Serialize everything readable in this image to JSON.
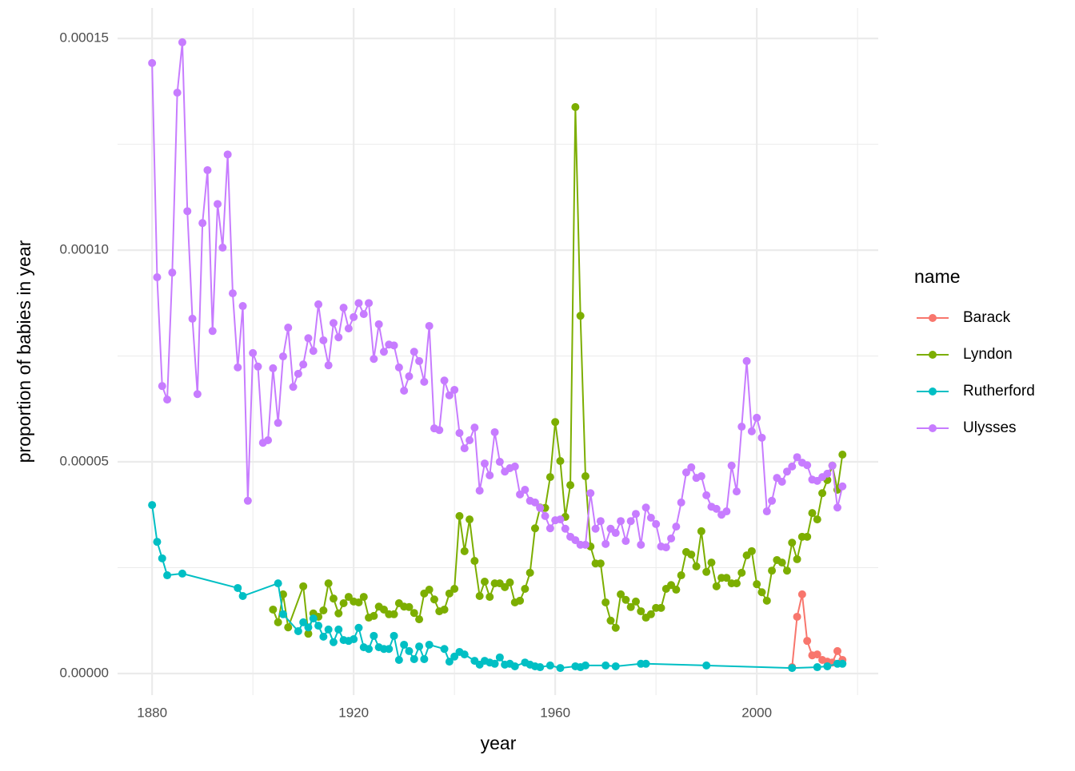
{
  "chart_data": {
    "type": "line",
    "x_label": "year",
    "y_label": "proportion of babies in year",
    "legend_title": "name",
    "legend_position": "right",
    "grid": true,
    "xlim": [
      1873.15,
      2024.1
    ],
    "ylim": [
      -5.1e-06,
      0.0001572
    ],
    "xticks": [
      1880,
      1920,
      1960,
      2000
    ],
    "yticks": [
      {
        "value": 0,
        "label": "0.00000"
      },
      {
        "value": 5e-05,
        "label": "0.00005"
      },
      {
        "value": 0.0001,
        "label": "0.00010"
      },
      {
        "value": 0.00015,
        "label": "0.00015"
      }
    ],
    "series": [
      {
        "name": "Barack",
        "color": "#F8766D",
        "x": [
          2007,
          2008,
          2009,
          2010,
          2011,
          2012,
          2013,
          2014,
          2015,
          2016,
          2017
        ],
        "values": [
          1.5e-06,
          1.34e-05,
          1.87e-05,
          7.7e-06,
          4.3e-06,
          4.5e-06,
          3.2e-06,
          2.8e-06,
          2.6e-06,
          5.3e-06,
          3.2e-06
        ]
      },
      {
        "name": "Lyndon",
        "color": "#7CAE00",
        "x": [
          1904,
          1905,
          1906,
          1907,
          1910,
          1911,
          1912,
          1913,
          1914,
          1915,
          1916,
          1917,
          1918,
          1919,
          1920,
          1921,
          1922,
          1923,
          1924,
          1925,
          1926,
          1927,
          1928,
          1929,
          1930,
          1931,
          1932,
          1933,
          1934,
          1935,
          1936,
          1937,
          1938,
          1939,
          1940,
          1941,
          1942,
          1943,
          1944,
          1945,
          1946,
          1947,
          1948,
          1949,
          1950,
          1951,
          1952,
          1953,
          1954,
          1955,
          1956,
          1957,
          1958,
          1959,
          1960,
          1961,
          1962,
          1963,
          1964,
          1965,
          1966,
          1967,
          1968,
          1969,
          1970,
          1971,
          1972,
          1973,
          1974,
          1975,
          1976,
          1977,
          1978,
          1979,
          1980,
          1981,
          1982,
          1983,
          1984,
          1985,
          1986,
          1987,
          1988,
          1989,
          1990,
          1991,
          1992,
          1993,
          1994,
          1995,
          1996,
          1997,
          1998,
          1999,
          2000,
          2001,
          2002,
          2003,
          2004,
          2005,
          2006,
          2007,
          2008,
          2009,
          2010,
          2011,
          2012,
          2013,
          2014,
          2015,
          2016,
          2017
        ],
        "values": [
          1.51e-05,
          1.21e-05,
          1.87e-05,
          1.09e-05,
          2.06e-05,
          9.4e-06,
          1.42e-05,
          1.34e-05,
          1.49e-05,
          2.13e-05,
          1.77e-05,
          1.42e-05,
          1.66e-05,
          1.81e-05,
          1.7e-05,
          1.68e-05,
          1.81e-05,
          1.32e-05,
          1.36e-05,
          1.58e-05,
          1.51e-05,
          1.4e-05,
          1.4e-05,
          1.66e-05,
          1.58e-05,
          1.57e-05,
          1.43e-05,
          1.28e-05,
          1.89e-05,
          1.98e-05,
          1.75e-05,
          1.47e-05,
          1.51e-05,
          1.89e-05,
          2e-05,
          3.72e-05,
          2.89e-05,
          3.64e-05,
          2.66e-05,
          1.83e-05,
          2.17e-05,
          1.81e-05,
          2.13e-05,
          2.13e-05,
          2.04e-05,
          2.15e-05,
          1.68e-05,
          1.72e-05,
          2e-05,
          2.38e-05,
          3.43e-05,
          3.92e-05,
          3.91e-05,
          4.64e-05,
          5.94e-05,
          5.02e-05,
          3.7e-05,
          4.45e-05,
          0.0001338,
          8.45e-05,
          4.66e-05,
          3e-05,
          2.6e-05,
          2.6e-05,
          1.68e-05,
          1.25e-05,
          1.08e-05,
          1.87e-05,
          1.74e-05,
          1.57e-05,
          1.7e-05,
          1.47e-05,
          1.32e-05,
          1.4e-05,
          1.55e-05,
          1.55e-05,
          2e-05,
          2.09e-05,
          1.98e-05,
          2.32e-05,
          2.87e-05,
          2.81e-05,
          2.53e-05,
          3.36e-05,
          2.4e-05,
          2.62e-05,
          2.06e-05,
          2.26e-05,
          2.26e-05,
          2.13e-05,
          2.13e-05,
          2.38e-05,
          2.79e-05,
          2.89e-05,
          2.11e-05,
          1.92e-05,
          1.72e-05,
          2.43e-05,
          2.68e-05,
          2.62e-05,
          2.43e-05,
          3.09e-05,
          2.7e-05,
          3.23e-05,
          3.23e-05,
          3.79e-05,
          3.64e-05,
          4.26e-05,
          4.57e-05,
          4.91e-05,
          4.34e-05,
          5.17e-05
        ]
      },
      {
        "name": "Rutherford",
        "color": "#00BFC4",
        "x": [
          1880,
          1881,
          1882,
          1883,
          1886,
          1897,
          1898,
          1905,
          1906,
          1909,
          1910,
          1911,
          1912,
          1913,
          1914,
          1915,
          1916,
          1917,
          1918,
          1919,
          1920,
          1921,
          1922,
          1923,
          1924,
          1925,
          1926,
          1927,
          1928,
          1929,
          1930,
          1931,
          1932,
          1933,
          1934,
          1935,
          1938,
          1939,
          1940,
          1941,
          1942,
          1944,
          1945,
          1946,
          1947,
          1948,
          1949,
          1950,
          1951,
          1952,
          1954,
          1955,
          1956,
          1957,
          1959,
          1961,
          1964,
          1965,
          1966,
          1970,
          1972,
          1977,
          1978,
          1990,
          2007,
          2012,
          2014,
          2016,
          2017
        ],
        "values": [
          3.98e-05,
          3.11e-05,
          2.72e-05,
          2.32e-05,
          2.36e-05,
          2.02e-05,
          1.83e-05,
          2.13e-05,
          1.4e-05,
          1e-05,
          1.21e-05,
          1.09e-05,
          1.3e-05,
          1.13e-05,
          8.7e-06,
          1.04e-05,
          7.4e-06,
          1.04e-05,
          7.9e-06,
          7.7e-06,
          8.1e-06,
          1.08e-05,
          6.2e-06,
          5.8e-06,
          8.9e-06,
          6.2e-06,
          5.8e-06,
          5.8e-06,
          8.9e-06,
          3.2e-06,
          6.8e-06,
          5.3e-06,
          3.4e-06,
          6.4e-06,
          3.4e-06,
          6.8e-06,
          5.8e-06,
          2.8e-06,
          4e-06,
          5.1e-06,
          4.5e-06,
          3e-06,
          2.1e-06,
          3e-06,
          2.6e-06,
          2.3e-06,
          3.8e-06,
          2.1e-06,
          2.3e-06,
          1.7e-06,
          2.6e-06,
          2.1e-06,
          1.7e-06,
          1.5e-06,
          1.9e-06,
          1.3e-06,
          1.7e-06,
          1.5e-06,
          1.9e-06,
          1.9e-06,
          1.7e-06,
          2.3e-06,
          2.3e-06,
          1.9e-06,
          1.3e-06,
          1.5e-06,
          1.7e-06,
          2.3e-06,
          2.3e-06
        ]
      },
      {
        "name": "Ulysses",
        "color": "#C77CFF",
        "x": [
          1880,
          1881,
          1882,
          1883,
          1884,
          1885,
          1886,
          1887,
          1888,
          1889,
          1890,
          1891,
          1892,
          1893,
          1894,
          1895,
          1896,
          1897,
          1898,
          1899,
          1900,
          1901,
          1902,
          1903,
          1904,
          1905,
          1906,
          1907,
          1908,
          1909,
          1910,
          1911,
          1912,
          1913,
          1914,
          1915,
          1916,
          1917,
          1918,
          1919,
          1920,
          1921,
          1922,
          1923,
          1924,
          1925,
          1926,
          1927,
          1928,
          1929,
          1930,
          1931,
          1932,
          1933,
          1934,
          1935,
          1936,
          1937,
          1938,
          1939,
          1940,
          1941,
          1942,
          1943,
          1944,
          1945,
          1946,
          1947,
          1948,
          1949,
          1950,
          1951,
          1952,
          1953,
          1954,
          1955,
          1956,
          1957,
          1958,
          1959,
          1960,
          1961,
          1962,
          1963,
          1964,
          1965,
          1966,
          1967,
          1968,
          1969,
          1970,
          1971,
          1972,
          1973,
          1974,
          1975,
          1976,
          1977,
          1978,
          1979,
          1980,
          1981,
          1982,
          1983,
          1984,
          1985,
          1986,
          1987,
          1988,
          1989,
          1990,
          1991,
          1992,
          1993,
          1994,
          1995,
          1996,
          1997,
          1998,
          1999,
          2000,
          2001,
          2002,
          2003,
          2004,
          2005,
          2006,
          2007,
          2008,
          2009,
          2010,
          2011,
          2012,
          2013,
          2014,
          2015,
          2016,
          2017
        ],
        "values": [
          0.0001442,
          9.36e-05,
          6.79e-05,
          6.47e-05,
          9.47e-05,
          0.0001372,
          0.0001491,
          0.0001092,
          8.38e-05,
          6.6e-05,
          0.0001064,
          0.0001189,
          8.09e-05,
          0.0001109,
          0.0001006,
          0.0001226,
          8.98e-05,
          7.23e-05,
          8.68e-05,
          4.08e-05,
          7.57e-05,
          7.25e-05,
          5.45e-05,
          5.51e-05,
          7.21e-05,
          5.92e-05,
          7.49e-05,
          8.17e-05,
          6.77e-05,
          7.08e-05,
          7.3e-05,
          7.92e-05,
          7.62e-05,
          8.72e-05,
          7.87e-05,
          7.28e-05,
          8.28e-05,
          7.94e-05,
          8.64e-05,
          8.15e-05,
          8.42e-05,
          8.75e-05,
          8.49e-05,
          8.75e-05,
          7.43e-05,
          8.25e-05,
          7.6e-05,
          7.77e-05,
          7.75e-05,
          7.23e-05,
          6.68e-05,
          7.02e-05,
          7.6e-05,
          7.38e-05,
          6.89e-05,
          8.21e-05,
          5.79e-05,
          5.75e-05,
          6.92e-05,
          6.57e-05,
          6.7e-05,
          5.68e-05,
          5.32e-05,
          5.51e-05,
          5.81e-05,
          4.32e-05,
          4.96e-05,
          4.68e-05,
          5.7e-05,
          5e-05,
          4.77e-05,
          4.85e-05,
          4.89e-05,
          4.23e-05,
          4.34e-05,
          4.08e-05,
          4.04e-05,
          3.91e-05,
          3.72e-05,
          3.43e-05,
          3.62e-05,
          3.64e-05,
          3.42e-05,
          3.23e-05,
          3.15e-05,
          3.04e-05,
          3.04e-05,
          4.26e-05,
          3.42e-05,
          3.6e-05,
          3.06e-05,
          3.42e-05,
          3.32e-05,
          3.6e-05,
          3.13e-05,
          3.6e-05,
          3.77e-05,
          3.04e-05,
          3.92e-05,
          3.68e-05,
          3.53e-05,
          3e-05,
          2.98e-05,
          3.19e-05,
          3.47e-05,
          4.04e-05,
          4.75e-05,
          4.87e-05,
          4.62e-05,
          4.66e-05,
          4.21e-05,
          3.94e-05,
          3.89e-05,
          3.75e-05,
          3.83e-05,
          4.91e-05,
          4.3e-05,
          5.83e-05,
          7.38e-05,
          5.72e-05,
          6.04e-05,
          5.57e-05,
          3.83e-05,
          4.08e-05,
          4.62e-05,
          4.53e-05,
          4.77e-05,
          4.89e-05,
          5.11e-05,
          4.98e-05,
          4.92e-05,
          4.58e-05,
          4.55e-05,
          4.64e-05,
          4.72e-05,
          4.91e-05,
          3.92e-05,
          4.42e-05
        ]
      }
    ]
  }
}
